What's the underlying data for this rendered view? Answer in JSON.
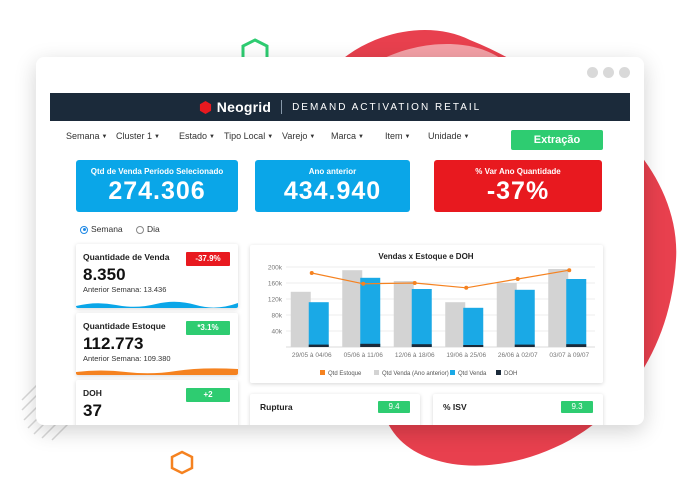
{
  "colors": {
    "blob": "#e8404e",
    "blob_light": "#f3a0a6",
    "header_bg": "#1b2a3a",
    "kpi_blue": "#0aa6e8",
    "kpi_red": "#e8191f",
    "green": "#2ecc71",
    "orange": "#f58220",
    "bar_gray": "#d3d3d3",
    "bar_blue": "#1aa9e6",
    "bar_dark": "#1b2a3a"
  },
  "header": {
    "brand": "Neogrid",
    "product": "DEMAND ACTIVATION RETAIL",
    "logo_icon": "hexagon-logo-icon"
  },
  "filters": [
    {
      "label": "Semana"
    },
    {
      "label": "Cluster 1"
    },
    {
      "label": "Estado"
    },
    {
      "label": "Tipo Local"
    },
    {
      "label": "Varejo"
    },
    {
      "label": "Marca"
    },
    {
      "label": "Item"
    },
    {
      "label": "Unidade"
    }
  ],
  "extract_button": "Extração",
  "kpis": [
    {
      "label": "Qtd de Venda Período Selecionado",
      "value": "274.306",
      "color": "#0aa6e8"
    },
    {
      "label": "Ano anterior",
      "value": "434.940",
      "color": "#0aa6e8"
    },
    {
      "label": "% Var Ano Quantidade",
      "value": "-37%",
      "color": "#e8191f"
    }
  ],
  "period_options": [
    {
      "label": "Semana",
      "selected": true
    },
    {
      "label": "Dia",
      "selected": false
    }
  ],
  "metric_cards": [
    {
      "title": "Quantidade de Venda",
      "value": "8.350",
      "sub": "Anterior Semana: 13.436",
      "badge": "-37.9%",
      "badge_color": "#e8191f",
      "wave_color": "#0aa6e8"
    },
    {
      "title": "Quantidade Estoque",
      "value": "112.773",
      "sub": "Anterior Semana: 109.380",
      "badge": "*3.1%",
      "badge_color": "#2ecc71",
      "wave_color": "#f58220"
    },
    {
      "title": "DOH",
      "value": "37",
      "sub": "",
      "badge": "+2",
      "badge_color": "#2ecc71",
      "wave_color": ""
    }
  ],
  "summary_cards": [
    {
      "title": "Ruptura",
      "badge": "9.4"
    },
    {
      "title": "% ISV",
      "badge": "9.3"
    }
  ],
  "chart_data": {
    "type": "bar",
    "title": "Vendas x Estoque e DOH",
    "categories": [
      "29/05 à 04/06",
      "05/06 à 11/06",
      "12/06 à 18/06",
      "19/06 à 25/06",
      "26/06 à 02/07",
      "03/07 à 09/07"
    ],
    "ylim": [
      0,
      200000
    ],
    "yticks": [
      "40k",
      "80k",
      "120k",
      "160k",
      "200k"
    ],
    "grid": true,
    "legend_position": "bottom",
    "series": [
      {
        "name": "Qtd Estoque",
        "type": "line",
        "color": "#f58220",
        "values": [
          185000,
          158000,
          160000,
          148000,
          170000,
          192000
        ]
      },
      {
        "name": "Qtd Venda (Ano anterior)",
        "type": "bar",
        "color": "#d3d3d3",
        "values": [
          138000,
          192000,
          165000,
          112000,
          160000,
          195000
        ]
      },
      {
        "name": "Qtd Venda",
        "type": "bar",
        "color": "#1aa9e6",
        "values": [
          112000,
          173000,
          145000,
          98000,
          143000,
          170000
        ]
      },
      {
        "name": "DOH",
        "type": "bar",
        "color": "#1b2a3a",
        "values": [
          6000,
          8000,
          7000,
          5000,
          6000,
          7000
        ]
      }
    ]
  }
}
